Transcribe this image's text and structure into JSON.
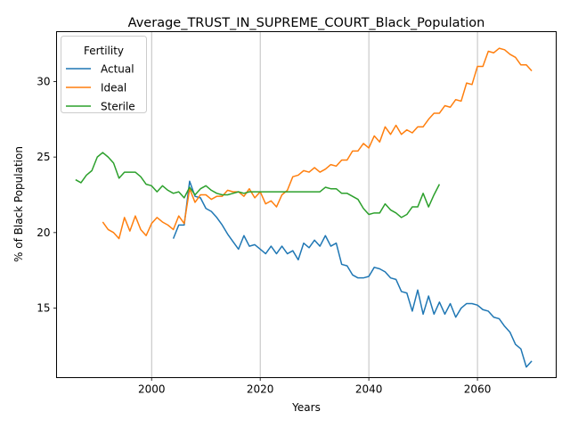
{
  "chart_data": {
    "type": "line",
    "title": "Average_TRUST_IN_SUPREME_COURT_Black_Population",
    "xlabel": "Years",
    "ylabel": "% of Black Population",
    "xlim": [
      1982.5,
      2074.5
    ],
    "ylim": [
      10.4,
      33.3
    ],
    "xticks": [
      2000,
      2020,
      2040,
      2060
    ],
    "yticks": [
      15,
      20,
      25,
      30
    ],
    "grid": "x-only",
    "legend": {
      "title": "Fertility",
      "placement": "top-left"
    },
    "series": [
      {
        "name": "Actual",
        "color": "#1f77b4",
        "x": [
          2004,
          2005,
          2006,
          2007,
          2008,
          2009,
          2010,
          2011,
          2012,
          2013,
          2014,
          2015,
          2016,
          2017,
          2018,
          2019,
          2020,
          2021,
          2022,
          2023,
          2024,
          2025,
          2026,
          2027,
          2028,
          2029,
          2030,
          2031,
          2032,
          2033,
          2034,
          2035,
          2036,
          2037,
          2038,
          2039,
          2040,
          2041,
          2042,
          2043,
          2044,
          2045,
          2046,
          2047,
          2048,
          2049,
          2050,
          2051,
          2052,
          2053,
          2054,
          2055,
          2056,
          2057,
          2058,
          2059,
          2060,
          2061,
          2062,
          2063,
          2064,
          2065,
          2066,
          2067,
          2068,
          2069,
          2070
        ],
        "values": [
          19.6,
          20.5,
          20.5,
          23.4,
          22.4,
          22.3,
          21.6,
          21.4,
          21.0,
          20.5,
          19.9,
          19.4,
          18.9,
          19.8,
          19.1,
          19.2,
          18.9,
          18.6,
          19.1,
          18.6,
          19.1,
          18.6,
          18.8,
          18.2,
          19.3,
          19.0,
          19.5,
          19.1,
          19.8,
          19.1,
          19.3,
          17.9,
          17.8,
          17.2,
          17.0,
          17.0,
          17.1,
          17.7,
          17.6,
          17.4,
          17.0,
          16.9,
          16.1,
          16.0,
          14.8,
          16.2,
          14.6,
          15.8,
          14.6,
          15.4,
          14.6,
          15.3,
          14.4,
          15.0,
          15.3,
          15.3,
          15.2,
          14.9,
          14.8,
          14.4,
          14.3,
          13.8,
          13.4,
          12.6,
          12.3,
          11.1,
          11.5
        ]
      },
      {
        "name": "Ideal",
        "color": "#ff7f0e",
        "x": [
          1991,
          1992,
          1993,
          1994,
          1995,
          1996,
          1997,
          1998,
          1999,
          2000,
          2001,
          2002,
          2003,
          2004,
          2005,
          2006,
          2007,
          2008,
          2009,
          2010,
          2011,
          2012,
          2013,
          2014,
          2015,
          2016,
          2017,
          2018,
          2019,
          2020,
          2021,
          2022,
          2023,
          2024,
          2025,
          2026,
          2027,
          2028,
          2029,
          2030,
          2031,
          2032,
          2033,
          2034,
          2035,
          2036,
          2037,
          2038,
          2039,
          2040,
          2041,
          2042,
          2043,
          2044,
          2045,
          2046,
          2047,
          2048,
          2049,
          2050,
          2051,
          2052,
          2053,
          2054,
          2055,
          2056,
          2057,
          2058,
          2059,
          2060,
          2061,
          2062,
          2063,
          2064,
          2065,
          2066,
          2067,
          2068,
          2069,
          2070
        ],
        "values": [
          20.7,
          20.2,
          20.0,
          19.6,
          21.0,
          20.1,
          21.1,
          20.2,
          19.8,
          20.6,
          21.0,
          20.7,
          20.5,
          20.2,
          21.1,
          20.6,
          22.9,
          22.0,
          22.5,
          22.5,
          22.2,
          22.4,
          22.4,
          22.8,
          22.7,
          22.7,
          22.4,
          22.9,
          22.3,
          22.7,
          21.9,
          22.1,
          21.7,
          22.5,
          22.8,
          23.7,
          23.8,
          24.1,
          24.0,
          24.3,
          24.0,
          24.2,
          24.5,
          24.4,
          24.8,
          24.8,
          25.4,
          25.4,
          25.9,
          25.6,
          26.4,
          26.0,
          27.0,
          26.5,
          27.1,
          26.5,
          26.8,
          26.6,
          27.0,
          27.0,
          27.5,
          27.9,
          27.9,
          28.4,
          28.3,
          28.8,
          28.7,
          29.9,
          29.8,
          31.0,
          31.0,
          32.0,
          31.9,
          32.2,
          32.1,
          31.8,
          31.6,
          31.1,
          31.1,
          30.7
        ]
      },
      {
        "name": "Sterile",
        "color": "#2ca02c",
        "x": [
          1986,
          1987,
          1988,
          1989,
          1990,
          1991,
          1992,
          1993,
          1994,
          1995,
          1996,
          1997,
          1998,
          1999,
          2000,
          2001,
          2002,
          2003,
          2004,
          2005,
          2006,
          2007,
          2008,
          2009,
          2010,
          2011,
          2012,
          2013,
          2014,
          2015,
          2016,
          2017,
          2018,
          2019,
          2020,
          2021,
          2022,
          2023,
          2024,
          2025,
          2026,
          2027,
          2028,
          2029,
          2030,
          2031,
          2032,
          2033,
          2034,
          2035,
          2036,
          2037,
          2038,
          2039,
          2040,
          2041,
          2042,
          2043,
          2044,
          2045,
          2046,
          2047,
          2048,
          2049,
          2050,
          2051,
          2052,
          2053
        ],
        "values": [
          23.5,
          23.3,
          23.8,
          24.1,
          25.0,
          25.3,
          25.0,
          24.6,
          23.6,
          24.0,
          24.0,
          24.0,
          23.7,
          23.2,
          23.1,
          22.7,
          23.1,
          22.8,
          22.6,
          22.7,
          22.3,
          23.0,
          22.5,
          22.9,
          23.1,
          22.8,
          22.6,
          22.5,
          22.5,
          22.6,
          22.7,
          22.6,
          22.7,
          22.7,
          22.7,
          22.7,
          22.7,
          22.7,
          22.7,
          22.7,
          22.7,
          22.7,
          22.7,
          22.7,
          22.7,
          22.7,
          23.0,
          22.9,
          22.9,
          22.6,
          22.6,
          22.4,
          22.2,
          21.6,
          21.2,
          21.3,
          21.3,
          21.9,
          21.5,
          21.3,
          21.0,
          21.2,
          21.7,
          21.7,
          22.6,
          21.7,
          22.5,
          23.2
        ]
      }
    ]
  }
}
